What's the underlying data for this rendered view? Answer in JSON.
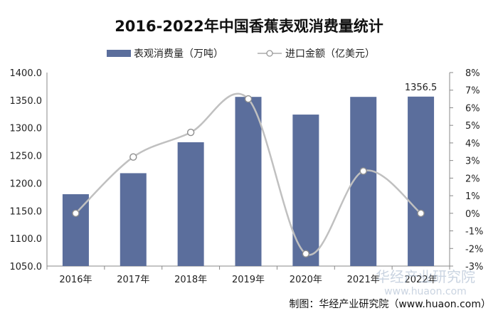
{
  "chart_data": {
    "type": "bar",
    "title": "2016-2022年中国香蕉表观消费量统计",
    "categories": [
      "2016年",
      "2017年",
      "2018年",
      "2019年",
      "2020年",
      "2021年",
      "2022年"
    ],
    "series": [
      {
        "name": "表观消费量（万吨）",
        "type": "bar",
        "axis": "left",
        "color": "#5b6e9c",
        "values": [
          1180,
          1218,
          1274,
          1356,
          1324,
          1356,
          1356.5
        ]
      },
      {
        "name": "进口金额（亿美元）",
        "type": "line",
        "axis": "right",
        "color": "#c0c0c0",
        "values": [
          0.0,
          3.2,
          4.6,
          6.5,
          -2.3,
          2.4,
          0.0
        ]
      }
    ],
    "data_labels": [
      {
        "category": "2022年",
        "text": "1356.5"
      }
    ],
    "y_left": {
      "min": 1050,
      "max": 1400,
      "ticks": [
        "1050.0",
        "1100.0",
        "1150.0",
        "1200.0",
        "1250.0",
        "1300.0",
        "1350.0",
        "1400.0"
      ]
    },
    "y_right": {
      "min": -3,
      "max": 8,
      "ticks": [
        "-3%",
        "-2%",
        "-1%",
        "0%",
        "1%",
        "2%",
        "3%",
        "4%",
        "5%",
        "6%",
        "7%",
        "8%"
      ]
    },
    "grid": false,
    "legend": "top"
  },
  "watermark": "华经产业研究院",
  "watermark_url": "www.huaon.com",
  "source": "制图：华经产业研究院（www.huaon.com）"
}
